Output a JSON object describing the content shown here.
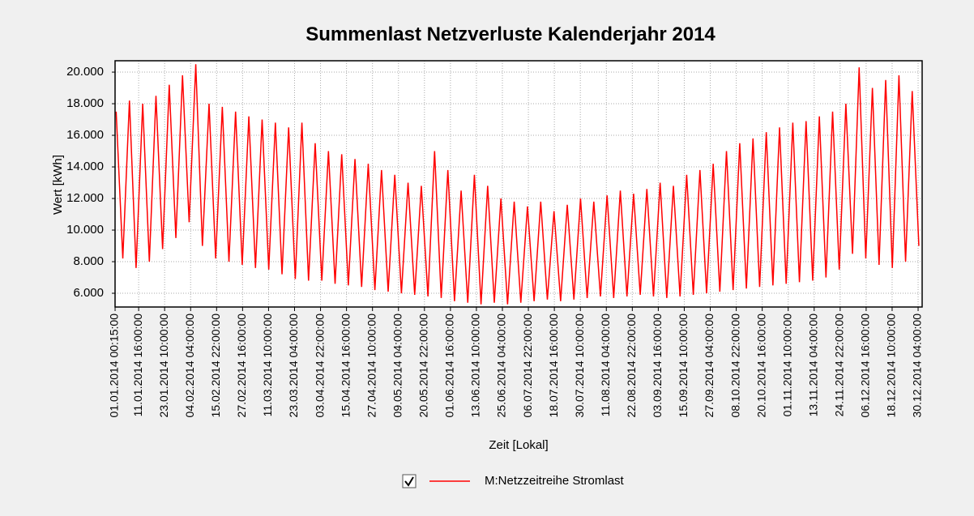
{
  "chart_data": {
    "type": "line",
    "title": "Summenlast Netzverluste Kalenderjahr 2014",
    "x_label": "Zeit [Lokal]",
    "y_label": "Wert [kWh]",
    "x": [
      "01.01.2014 12:00:00",
      "04.01.2014 12:00:00",
      "07.01.2014 12:00:00",
      "10.01.2014 12:00:00",
      "13.01.2014 12:00:00",
      "16.01.2014 12:00:00",
      "19.01.2014 12:00:00",
      "22.01.2014 12:00:00",
      "25.01.2014 12:00:00",
      "28.01.2014 12:00:00",
      "31.01.2014 12:00:00",
      "03.02.2014 12:00:00",
      "06.02.2014 12:00:00",
      "09.02.2014 12:00:00",
      "12.02.2014 12:00:00",
      "15.02.2014 12:00:00",
      "18.02.2014 12:00:00",
      "21.02.2014 12:00:00",
      "24.02.2014 12:00:00",
      "27.02.2014 12:00:00",
      "02.03.2014 12:00:00",
      "05.03.2014 12:00:00",
      "08.03.2014 12:00:00",
      "11.03.2014 12:00:00",
      "14.03.2014 12:00:00",
      "17.03.2014 12:00:00",
      "20.03.2014 12:00:00",
      "23.03.2014 12:00:00",
      "26.03.2014 12:00:00",
      "29.03.2014 12:00:00",
      "01.04.2014 12:00:00",
      "04.04.2014 12:00:00",
      "07.04.2014 12:00:00",
      "10.04.2014 12:00:00",
      "13.04.2014 12:00:00",
      "16.04.2014 12:00:00",
      "19.04.2014 12:00:00",
      "22.04.2014 12:00:00",
      "25.04.2014 12:00:00",
      "28.04.2014 12:00:00",
      "01.05.2014 12:00:00",
      "04.05.2014 12:00:00",
      "07.05.2014 12:00:00",
      "10.05.2014 12:00:00",
      "13.05.2014 12:00:00",
      "16.05.2014 12:00:00",
      "19.05.2014 12:00:00",
      "22.05.2014 12:00:00",
      "25.05.2014 12:00:00",
      "28.05.2014 12:00:00",
      "31.05.2014 12:00:00",
      "03.06.2014 12:00:00",
      "06.06.2014 12:00:00",
      "09.06.2014 12:00:00",
      "12.06.2014 12:00:00",
      "15.06.2014 12:00:00",
      "18.06.2014 12:00:00",
      "21.06.2014 12:00:00",
      "24.06.2014 12:00:00",
      "27.06.2014 12:00:00",
      "30.06.2014 12:00:00",
      "03.07.2014 12:00:00",
      "06.07.2014 12:00:00",
      "09.07.2014 12:00:00",
      "12.07.2014 12:00:00",
      "15.07.2014 12:00:00",
      "18.07.2014 12:00:00",
      "21.07.2014 12:00:00",
      "24.07.2014 12:00:00",
      "27.07.2014 12:00:00",
      "30.07.2014 12:00:00",
      "02.08.2014 12:00:00",
      "05.08.2014 12:00:00",
      "08.08.2014 12:00:00",
      "11.08.2014 12:00:00",
      "14.08.2014 12:00:00",
      "17.08.2014 12:00:00",
      "20.08.2014 12:00:00",
      "23.08.2014 12:00:00",
      "26.08.2014 12:00:00",
      "29.08.2014 12:00:00",
      "01.09.2014 12:00:00",
      "04.09.2014 12:00:00",
      "07.09.2014 12:00:00",
      "10.09.2014 12:00:00",
      "13.09.2014 12:00:00",
      "16.09.2014 12:00:00",
      "19.09.2014 12:00:00",
      "22.09.2014 12:00:00",
      "25.09.2014 12:00:00",
      "28.09.2014 12:00:00",
      "01.10.2014 12:00:00",
      "04.10.2014 12:00:00",
      "07.10.2014 12:00:00",
      "10.10.2014 12:00:00",
      "13.10.2014 12:00:00",
      "16.10.2014 12:00:00",
      "19.10.2014 12:00:00",
      "22.10.2014 12:00:00",
      "25.10.2014 12:00:00",
      "28.10.2014 12:00:00",
      "31.10.2014 12:00:00",
      "03.11.2014 12:00:00",
      "06.11.2014 12:00:00",
      "09.11.2014 12:00:00",
      "12.11.2014 12:00:00",
      "15.11.2014 12:00:00",
      "18.11.2014 12:00:00",
      "21.11.2014 12:00:00",
      "24.11.2014 12:00:00",
      "27.11.2014 12:00:00",
      "30.11.2014 12:00:00",
      "03.12.2014 12:00:00",
      "06.12.2014 12:00:00",
      "09.12.2014 12:00:00",
      "12.12.2014 12:00:00",
      "15.12.2014 12:00:00",
      "18.12.2014 12:00:00",
      "21.12.2014 12:00:00",
      "24.12.2014 12:00:00",
      "27.12.2014 12:00:00",
      "30.12.2014 12:00:00"
    ],
    "series": [
      {
        "name": "M:Netzzeitreihe Stromlast",
        "color": "#ff0000",
        "values": [
          17500,
          8200,
          18200,
          7600,
          18000,
          8000,
          18500,
          8800,
          19200,
          9500,
          19800,
          10500,
          20500,
          9000,
          18000,
          8200,
          17800,
          8000,
          17500,
          7800,
          17200,
          7600,
          17000,
          7500,
          16800,
          7200,
          16500,
          6900,
          16800,
          6800,
          15500,
          6800,
          15000,
          6600,
          14800,
          6500,
          14500,
          6400,
          14200,
          6200,
          13800,
          6100,
          13500,
          6000,
          13000,
          5900,
          12800,
          5800,
          15000,
          5700,
          13800,
          5500,
          12500,
          5400,
          13500,
          5300,
          12800,
          5400,
          12000,
          5300,
          11800,
          5400,
          11500,
          5500,
          11800,
          5600,
          11200,
          5500,
          11600,
          5600,
          12000,
          5700,
          11800,
          5800,
          12200,
          5700,
          12500,
          5800,
          12300,
          5900,
          12600,
          5800,
          13000,
          5700,
          12800,
          5800,
          13500,
          5900,
          13800,
          6000,
          14200,
          6100,
          15000,
          6200,
          15500,
          6300,
          15800,
          6400,
          16200,
          6500,
          16500,
          6600,
          16800,
          6700,
          16900,
          6800,
          17200,
          7000,
          17500,
          7500,
          18000,
          8500,
          20300,
          8200,
          19000,
          7800,
          19500,
          7600,
          19800,
          8000,
          18800,
          9000
        ]
      }
    ],
    "xlim": [
      "01.01.2014 00:00:00",
      "31.12.2014 23:45:00"
    ],
    "xticks": [
      "01.01.2014 00:15:00",
      "11.01.2014 16:00:00",
      "23.01.2014 10:00:00",
      "04.02.2014 04:00:00",
      "15.02.2014 22:00:00",
      "27.02.2014 16:00:00",
      "11.03.2014 10:00:00",
      "23.03.2014 04:00:00",
      "03.04.2014 22:00:00",
      "15.04.2014 16:00:00",
      "27.04.2014 10:00:00",
      "09.05.2014 04:00:00",
      "20.05.2014 22:00:00",
      "01.06.2014 16:00:00",
      "13.06.2014 10:00:00",
      "25.06.2014 04:00:00",
      "06.07.2014 22:00:00",
      "18.07.2014 16:00:00",
      "30.07.2014 10:00:00",
      "11.08.2014 04:00:00",
      "22.08.2014 22:00:00",
      "03.09.2014 16:00:00",
      "15.09.2014 10:00:00",
      "27.09.2014 04:00:00",
      "08.10.2014 22:00:00",
      "20.10.2014 16:00:00",
      "01.11.2014 10:00:00",
      "13.11.2014 04:00:00",
      "24.11.2014 22:00:00",
      "06.12.2014 16:00:00",
      "18.12.2014 10:00:00",
      "30.12.2014 04:00:00"
    ],
    "ylim": [
      5130,
      20720
    ],
    "yticks": [
      {
        "value": 6000,
        "label": "6.000"
      },
      {
        "value": 8000,
        "label": "8.000"
      },
      {
        "value": 10000,
        "label": "10.000"
      },
      {
        "value": 12000,
        "label": "12.000"
      },
      {
        "value": 14000,
        "label": "14.000"
      },
      {
        "value": 16000,
        "label": "16.000"
      },
      {
        "value": 18000,
        "label": "18.000"
      },
      {
        "value": 20000,
        "label": "20.000"
      }
    ],
    "grid": true,
    "legend": "bottom"
  }
}
